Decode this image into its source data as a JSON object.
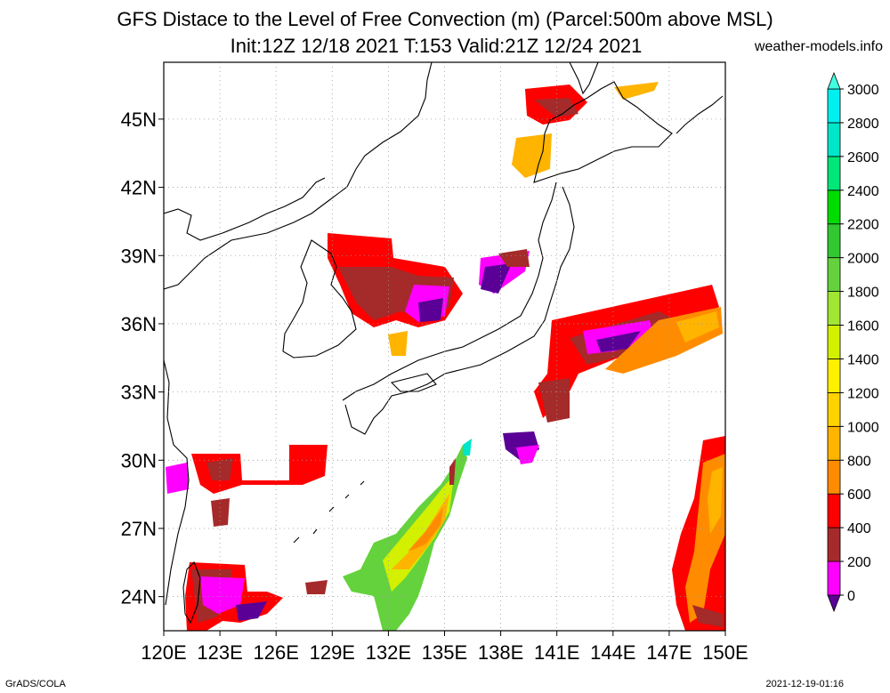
{
  "title": {
    "line1": "GFS Distace to the Level of Free Convection (m) (Parcel:500m above MSL)",
    "line2": "Init:12Z 12/18 2021 T:153 Valid:21Z 12/24 2021"
  },
  "source": "weather-models.info",
  "footer": {
    "left": "GrADS/COLA",
    "right": "2021-12-19-01:16"
  },
  "map": {
    "lon_range": [
      120,
      150
    ],
    "lat_range": [
      22.5,
      47.5
    ],
    "lon_ticks": [
      "120E",
      "123E",
      "126E",
      "129E",
      "132E",
      "135E",
      "138E",
      "141E",
      "144E",
      "147E",
      "150E"
    ],
    "lat_ticks": [
      "24N",
      "27N",
      "30N",
      "33N",
      "36N",
      "39N",
      "42N",
      "45N"
    ],
    "grid": true
  },
  "colorbar": {
    "labels": [
      "0",
      "200",
      "400",
      "600",
      "800",
      "1000",
      "1200",
      "1400",
      "1600",
      "1800",
      "2000",
      "2200",
      "2400",
      "2600",
      "2800",
      "3000"
    ],
    "colors": [
      "#5a0096",
      "#ff00ff",
      "#a52a2a",
      "#ff0000",
      "#ff8c00",
      "#ffb400",
      "#ffd200",
      "#fff000",
      "#d2f000",
      "#a0e632",
      "#64d23c",
      "#32c832",
      "#00dc00",
      "#00e678",
      "#00e6c8",
      "#00f0f0",
      "#40ffe0"
    ]
  }
}
